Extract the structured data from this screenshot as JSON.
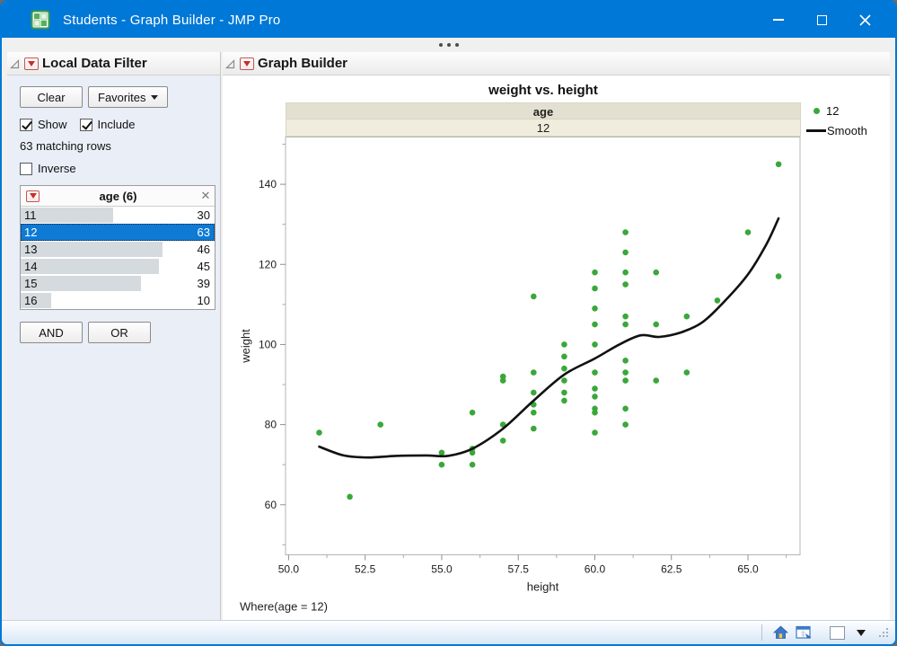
{
  "colors": {
    "accent": "#0078d7",
    "selection": "#0e7ad4",
    "point_green": "#3aa73a",
    "smooth_black": "#111111",
    "facet_band_header": "#e4e0d1",
    "facet_band_value": "#f0edde"
  },
  "window": {
    "title": "Students - Graph Builder - JMP Pro"
  },
  "left_panel": {
    "title": "Local Data Filter",
    "clear_label": "Clear",
    "favorites_label": "Favorites",
    "show_label": "Show",
    "show_checked": true,
    "include_label": "Include",
    "include_checked": true,
    "matching_rows": "63 matching rows",
    "inverse_label": "Inverse",
    "inverse_checked": false,
    "filter": {
      "title": "age (6)",
      "max_count": 63,
      "rows": [
        {
          "value": "11",
          "count": "30",
          "selected": false
        },
        {
          "value": "12",
          "count": "63",
          "selected": true
        },
        {
          "value": "13",
          "count": "46",
          "selected": false
        },
        {
          "value": "14",
          "count": "45",
          "selected": false
        },
        {
          "value": "15",
          "count": "39",
          "selected": false
        },
        {
          "value": "16",
          "count": "10",
          "selected": false
        }
      ]
    },
    "and_label": "AND",
    "or_label": "OR"
  },
  "right_panel": {
    "title": "Graph Builder"
  },
  "chart_data": {
    "type": "scatter",
    "title": "weight vs. height",
    "xlabel": "height",
    "ylabel": "weight",
    "facet_header": "age",
    "facet_value": "12",
    "where_note": "Where(age = 12)",
    "grid": false,
    "legend_position": "right",
    "xlim": [
      49.9,
      66.7
    ],
    "ylim": [
      47.5,
      151.8
    ],
    "x_tick_values": [
      50,
      52.5,
      55,
      57.5,
      60,
      62.5,
      65
    ],
    "x_tick_labels": [
      "50.0",
      "52.5",
      "55.0",
      "57.5",
      "60.0",
      "62.5",
      "65.0"
    ],
    "x_minor_ticks": [
      51.25,
      53.75,
      56.25,
      58.75,
      61.25,
      63.75,
      66.25
    ],
    "y_tick_values": [
      60,
      80,
      100,
      120,
      140
    ],
    "y_tick_labels": [
      "60",
      "80",
      "100",
      "120",
      "140"
    ],
    "y_minor_ticks": [
      50,
      70,
      90,
      110,
      130,
      150
    ],
    "series": [
      {
        "name": "12",
        "type": "scatter",
        "color": "#3aa73a",
        "points": [
          [
            51,
            78
          ],
          [
            52,
            62
          ],
          [
            53,
            80
          ],
          [
            55,
            73
          ],
          [
            55,
            70
          ],
          [
            56,
            83
          ],
          [
            56,
            74
          ],
          [
            56,
            73
          ],
          [
            56,
            70
          ],
          [
            57,
            92
          ],
          [
            57,
            91
          ],
          [
            57,
            80
          ],
          [
            57,
            76
          ],
          [
            58,
            112
          ],
          [
            58,
            93
          ],
          [
            58,
            88
          ],
          [
            58,
            85
          ],
          [
            58,
            83
          ],
          [
            58,
            79
          ],
          [
            59,
            100
          ],
          [
            59,
            97
          ],
          [
            59,
            94
          ],
          [
            59,
            91
          ],
          [
            59,
            88
          ],
          [
            59,
            86
          ],
          [
            60,
            118
          ],
          [
            60,
            114
          ],
          [
            60,
            109
          ],
          [
            60,
            105
          ],
          [
            60,
            100
          ],
          [
            60,
            93
          ],
          [
            60,
            89
          ],
          [
            60,
            87
          ],
          [
            60,
            84
          ],
          [
            60,
            83
          ],
          [
            60,
            78
          ],
          [
            61,
            128
          ],
          [
            61,
            123
          ],
          [
            61,
            118
          ],
          [
            61,
            115
          ],
          [
            61,
            107
          ],
          [
            61,
            105
          ],
          [
            61,
            96
          ],
          [
            61,
            93
          ],
          [
            61,
            91
          ],
          [
            61,
            84
          ],
          [
            61,
            80
          ],
          [
            62,
            118
          ],
          [
            62,
            105
          ],
          [
            62,
            91
          ],
          [
            63,
            107
          ],
          [
            63,
            93
          ],
          [
            64,
            111
          ],
          [
            65,
            128
          ],
          [
            66,
            145
          ],
          [
            66,
            117
          ]
        ]
      },
      {
        "name": "Smooth",
        "type": "line",
        "color": "#111111",
        "points": [
          [
            51,
            74.5
          ],
          [
            51.8,
            72.3
          ],
          [
            52.6,
            71.8
          ],
          [
            53.5,
            72.2
          ],
          [
            54.5,
            72.3
          ],
          [
            55.2,
            72.2
          ],
          [
            56,
            74
          ],
          [
            57,
            79
          ],
          [
            58,
            86
          ],
          [
            59,
            92.5
          ],
          [
            60,
            96.5
          ],
          [
            60.8,
            100
          ],
          [
            61.5,
            102.3
          ],
          [
            62.1,
            101.9
          ],
          [
            62.8,
            103
          ],
          [
            63.5,
            105.5
          ],
          [
            64.2,
            110.5
          ],
          [
            65,
            117.5
          ],
          [
            65.6,
            125
          ],
          [
            66,
            131.5
          ]
        ]
      }
    ]
  }
}
